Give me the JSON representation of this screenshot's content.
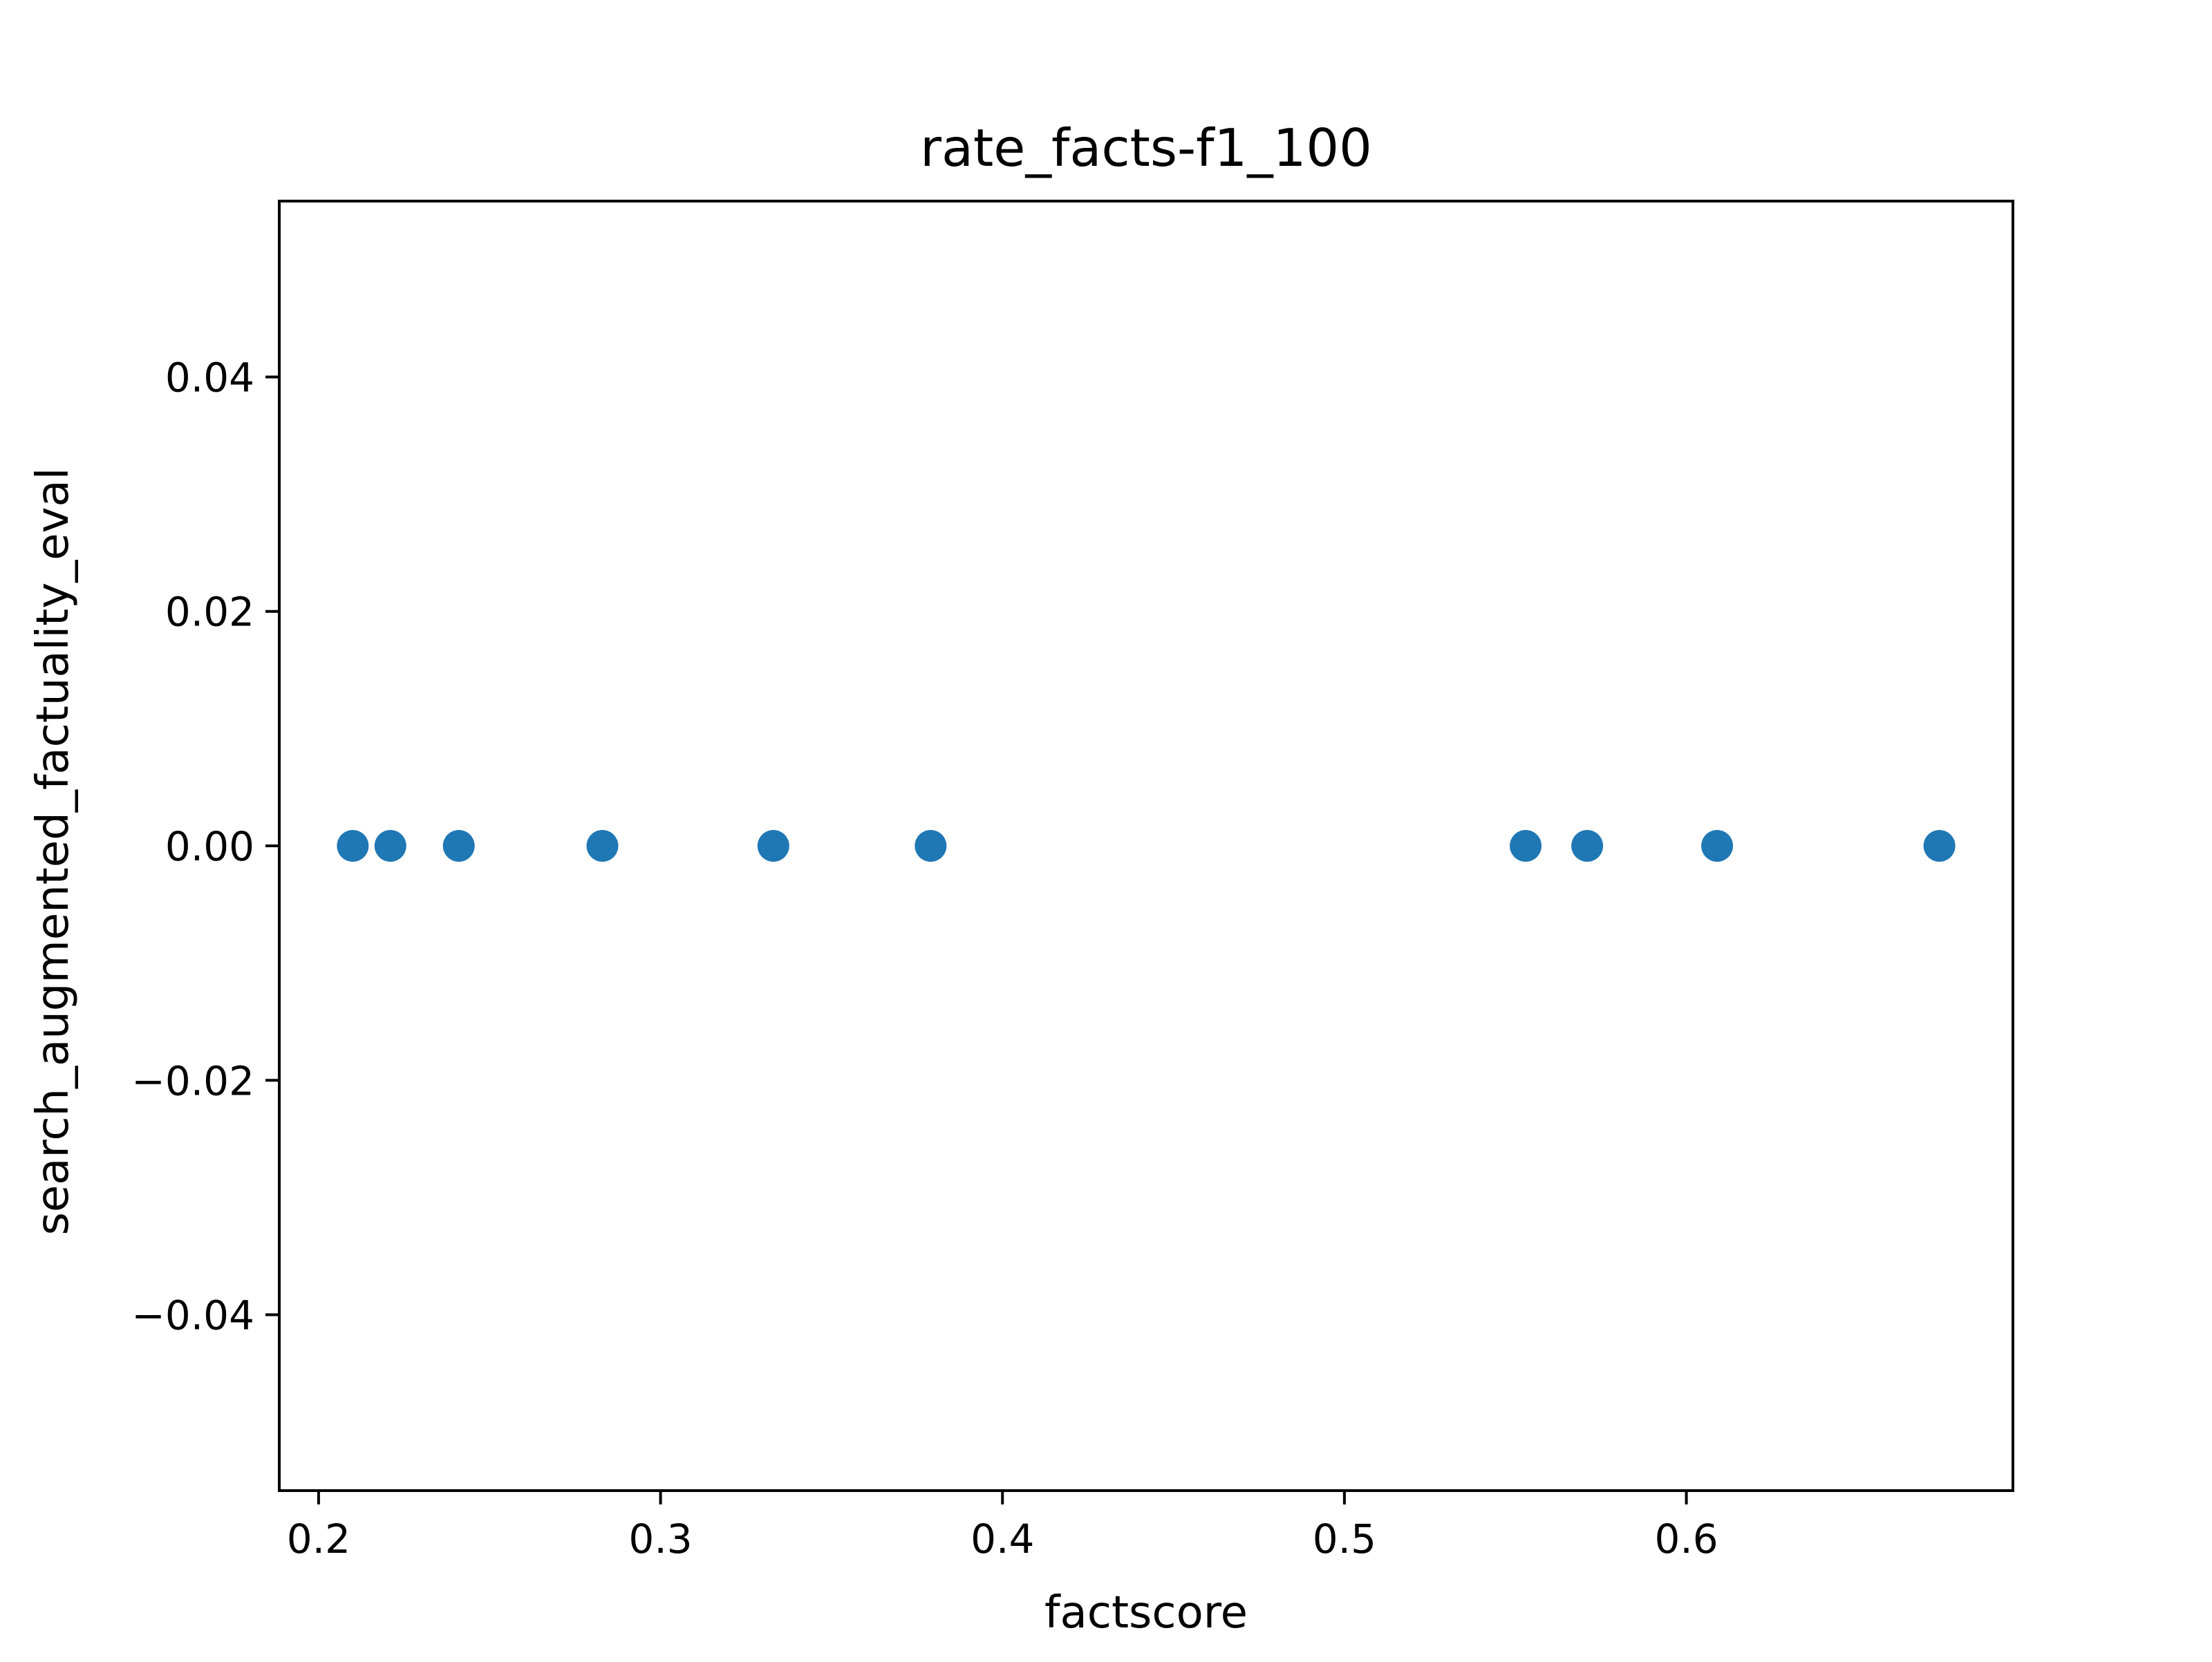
{
  "chart_data": {
    "type": "scatter",
    "title": "rate_facts-f1_100",
    "xlabel": "factscore",
    "ylabel": "search_augmented_factuality_eval",
    "xlim": [
      0.1885,
      0.6955
    ],
    "ylim": [
      -0.055,
      0.055
    ],
    "xticks": [
      {
        "value": 0.2,
        "label": "0.2"
      },
      {
        "value": 0.3,
        "label": "0.3"
      },
      {
        "value": 0.4,
        "label": "0.4"
      },
      {
        "value": 0.5,
        "label": "0.5"
      },
      {
        "value": 0.6,
        "label": "0.6"
      }
    ],
    "yticks": [
      {
        "value": 0.04,
        "label": "0.04"
      },
      {
        "value": 0.02,
        "label": "0.02"
      },
      {
        "value": 0.0,
        "label": "0.00"
      },
      {
        "value": -0.02,
        "label": "−0.02"
      },
      {
        "value": -0.04,
        "label": "−0.04"
      }
    ],
    "grid": false,
    "point_color": "#1f77b4",
    "series": [
      {
        "x": [
          0.21,
          0.221,
          0.241,
          0.283,
          0.333,
          0.379,
          0.553,
          0.571,
          0.609,
          0.674
        ],
        "y": [
          0,
          0,
          0,
          0,
          0,
          0,
          0,
          0,
          0,
          0
        ]
      }
    ]
  }
}
